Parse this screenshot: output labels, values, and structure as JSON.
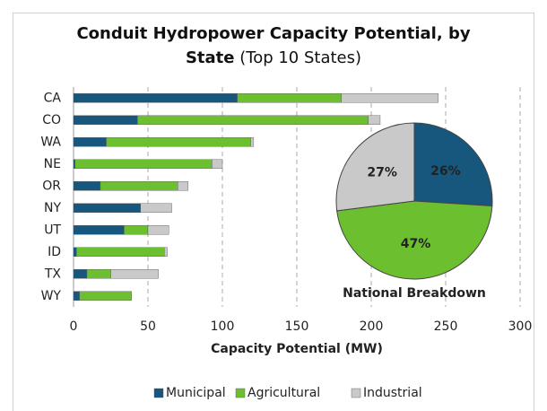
{
  "chart_data": [
    {
      "type": "stacked_barh",
      "title": "Conduit Hydropower Capacity Potential, by State",
      "subtitle": "(Top 10 States)",
      "x_label": "Capacity Potential (MW)",
      "categories": [
        "CA",
        "CO",
        "WA",
        "NE",
        "OR",
        "NY",
        "UT",
        "ID",
        "TX",
        "WY"
      ],
      "series": [
        {
          "name": "Municipal",
          "color": "#17577e",
          "values": [
            110,
            43,
            22,
            1,
            18,
            45,
            34,
            2,
            9,
            4
          ]
        },
        {
          "name": "Agricultural",
          "color": "#6cbf2e",
          "values": [
            70,
            155,
            97,
            92,
            52,
            0,
            16,
            59,
            16,
            35
          ]
        },
        {
          "name": "Industrial",
          "color": "#c9c9c9",
          "values": [
            65,
            8,
            2,
            7,
            7,
            21,
            14,
            2,
            32,
            0
          ]
        }
      ],
      "xlim": [
        0,
        300
      ],
      "xticks": [
        0,
        50,
        100,
        150,
        200,
        250,
        300
      ],
      "grid": true,
      "legend": "bottom"
    },
    {
      "type": "pie",
      "title": "National Breakdown",
      "categories": [
        "Municipal",
        "Agricultural",
        "Industrial"
      ],
      "values": [
        26,
        47,
        27
      ],
      "value_labels": [
        "26%",
        "47%",
        "27%"
      ],
      "colors": [
        "#17577e",
        "#6cbf2e",
        "#c9c9c9"
      ]
    }
  ]
}
